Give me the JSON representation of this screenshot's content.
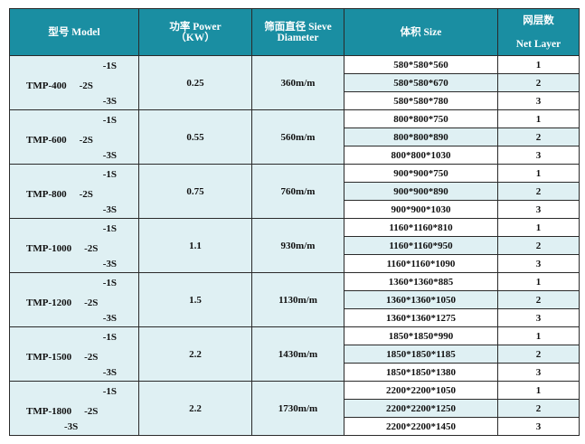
{
  "header": {
    "model": "型号 Model",
    "power_line1": "功率 Power",
    "power_line2": "（KW）",
    "diameter_line1": "筛面直径 Sieve",
    "diameter_line2": "Diameter",
    "size": "体积 Size",
    "layer_line1": "网层数",
    "layer_line2": "Net Layer"
  },
  "rows": [
    {
      "model": "TMP-400",
      "s1": "-1S",
      "s2": "-2S",
      "s3": "-3S",
      "power": "0.25",
      "diameter": "360m/m",
      "sizes": [
        "580*580*560",
        "580*580*670",
        "580*580*780"
      ],
      "layers": [
        "1",
        "2",
        "3"
      ]
    },
    {
      "model": "TMP-600",
      "s1": "-1S",
      "s2": "-2S",
      "s3": "-3S",
      "power": "0.55",
      "diameter": "560m/m",
      "sizes": [
        "800*800*750",
        "800*800*890",
        "800*800*1030"
      ],
      "layers": [
        "1",
        "2",
        "3"
      ]
    },
    {
      "model": "TMP-800",
      "s1": "-1S",
      "s2": "-2S",
      "s3": "-3S",
      "power": "0.75",
      "diameter": "760m/m",
      "sizes": [
        "900*900*750",
        "900*900*890",
        "900*900*1030"
      ],
      "layers": [
        "1",
        "2",
        "3"
      ]
    },
    {
      "model": "TMP-1000",
      "s1": "-1S",
      "s2": "-2S",
      "s3": "-3S",
      "power": "1.1",
      "diameter": "930m/m",
      "sizes": [
        "1160*1160*810",
        "1160*1160*950",
        "1160*1160*1090"
      ],
      "layers": [
        "1",
        "2",
        "3"
      ]
    },
    {
      "model": "TMP-1200",
      "s1": "-1S",
      "s2": "-2S",
      "s3": "-3S",
      "power": "1.5",
      "diameter": "1130m/m",
      "sizes": [
        "1360*1360*885",
        "1360*1360*1050",
        "1360*1360*1275"
      ],
      "layers": [
        "1",
        "2",
        "3"
      ]
    },
    {
      "model": "TMP-1500",
      "s1": "-1S",
      "s2": "-2S",
      "s3": "-3S",
      "power": "2.2",
      "diameter": "1430m/m",
      "sizes": [
        "1850*1850*990",
        "1850*1850*1185",
        "1850*1850*1380"
      ],
      "layers": [
        "1",
        "2",
        "3"
      ]
    },
    {
      "model": "TMP-1800",
      "s1": "-1S",
      "s2": "-2S",
      "s3": "-3S",
      "power": "2.2",
      "diameter": "1730m/m",
      "sizes": [
        "2200*2200*1050",
        "2200*2200*1250",
        "2200*2200*1450"
      ],
      "layers": [
        "1",
        "2",
        "3"
      ]
    }
  ]
}
